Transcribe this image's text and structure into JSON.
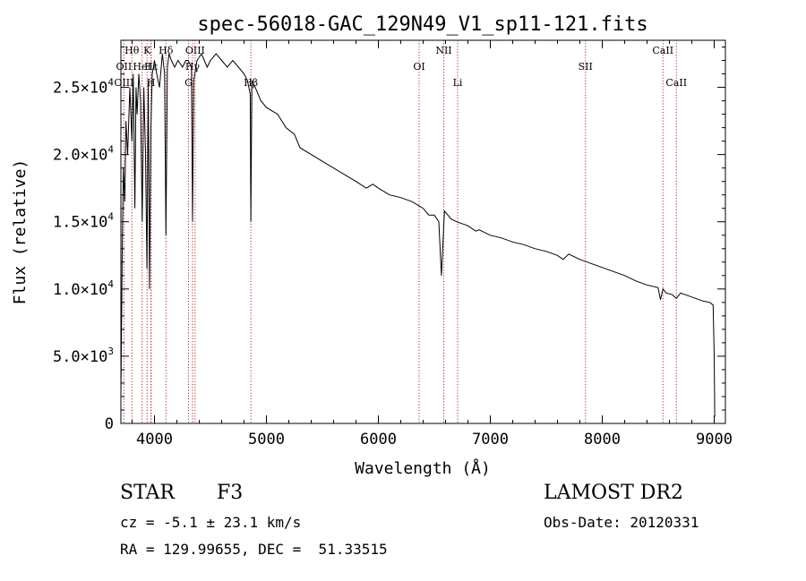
{
  "chart_data": {
    "type": "line",
    "title": "spec-56018-GAC_129N49_V1_sp11-121.fits",
    "xlabel": "Wavelength (Å)",
    "ylabel": "Flux (relative)",
    "xlim": [
      3700,
      9100
    ],
    "ylim": [
      0,
      28500
    ],
    "grid": false,
    "legend": "none",
    "x_ticks": [
      4000,
      5000,
      6000,
      7000,
      8000,
      9000
    ],
    "x_tick_labels": [
      "4000",
      "5000",
      "6000",
      "7000",
      "8000",
      "9000"
    ],
    "y_ticks": [
      0,
      5000,
      10000,
      15000,
      20000,
      25000
    ],
    "y_tick_labels": [
      {
        "mant": "0",
        "exp": ""
      },
      {
        "mant": "5.0×10",
        "exp": "3"
      },
      {
        "mant": "1.0×10",
        "exp": "4"
      },
      {
        "mant": "1.5×10",
        "exp": "4"
      },
      {
        "mant": "2.0×10",
        "exp": "4"
      },
      {
        "mant": "2.5×10",
        "exp": "4"
      }
    ],
    "series": [
      {
        "x": [
          3700,
          3712,
          3722,
          3735,
          3745,
          3760,
          3780,
          3798,
          3810,
          3825,
          3835,
          3845,
          3860,
          3875,
          3890,
          3905,
          3920,
          3933,
          3945,
          3955,
          3968,
          3980,
          3990,
          4000,
          4020,
          4045,
          4070,
          4090,
          4102,
          4115,
          4130,
          4150,
          4180,
          4210,
          4250,
          4280,
          4300,
          4330,
          4340,
          4350,
          4380,
          4420,
          4470,
          4500,
          4550,
          4600,
          4650,
          4700,
          4750,
          4800,
          4830,
          4855,
          4861,
          4870,
          4900,
          4950,
          5000,
          5100,
          5175,
          5250,
          5300,
          5400,
          5500,
          5600,
          5700,
          5800,
          5893,
          5950,
          6000,
          6100,
          6200,
          6300,
          6400,
          6450,
          6500,
          6540,
          6563,
          6590,
          6650,
          6700,
          6800,
          6870,
          6900,
          7000,
          7100,
          7200,
          7300,
          7400,
          7500,
          7600,
          7650,
          7700,
          7800,
          7900,
          8000,
          8100,
          8200,
          8300,
          8400,
          8498,
          8520,
          8542,
          8570,
          8620,
          8662,
          8700,
          8800,
          8900,
          8960,
          8990,
          9000,
          9005
        ],
        "y": [
          2000,
          13000,
          19000,
          16500,
          22500,
          20000,
          25000,
          21000,
          26000,
          16000,
          25000,
          23000,
          26000,
          24000,
          15000,
          25000,
          20000,
          11500,
          25500,
          10000,
          22000,
          26000,
          26500,
          27000,
          26000,
          25000,
          27500,
          26000,
          14000,
          26500,
          27500,
          27000,
          26500,
          27000,
          26500,
          27000,
          27000,
          26500,
          15000,
          25500,
          27000,
          27500,
          26500,
          27000,
          27500,
          27000,
          26500,
          27000,
          26500,
          26000,
          25500,
          24500,
          15000,
          25500,
          25000,
          24000,
          23500,
          23000,
          22000,
          21500,
          20500,
          20000,
          19500,
          19000,
          18500,
          18000,
          17500,
          17800,
          17500,
          17000,
          16800,
          16500,
          16000,
          15500,
          15500,
          15000,
          11000,
          15800,
          15200,
          15000,
          14700,
          14300,
          14400,
          14000,
          13800,
          13500,
          13300,
          13000,
          12800,
          12500,
          12200,
          12600,
          12200,
          11900,
          11600,
          11300,
          11000,
          10600,
          10300,
          10100,
          9200,
          10000,
          9700,
          9600,
          9300,
          9700,
          9400,
          9100,
          9000,
          8800,
          5000,
          500
        ]
      }
    ],
    "lines": [
      {
        "label": "Hθ",
        "x": 3798,
        "row": 1
      },
      {
        "label": "OII",
        "x": 3727,
        "row": 2
      },
      {
        "label": "OIII",
        "x": 3727,
        "row": 3
      },
      {
        "label": "K",
        "x": 3934,
        "row": 1
      },
      {
        "label": "HeI",
        "x": 3889,
        "row": 2
      },
      {
        "label": "H",
        "x": 3969,
        "row": 3
      },
      {
        "label": "Hδ",
        "x": 4102,
        "row": 1
      },
      {
        "label": "Hε",
        "x": 3970,
        "row": 2
      },
      {
        "label": "G",
        "x": 4304,
        "row": 3
      },
      {
        "label": "OIII",
        "x": 4363,
        "row": 1
      },
      {
        "label": "Hγ",
        "x": 4340,
        "row": 2
      },
      {
        "label": "Hβ",
        "x": 4861,
        "row": 3
      },
      {
        "label": "NII",
        "x": 6584,
        "row": 1
      },
      {
        "label": "OI",
        "x": 6364,
        "row": 2
      },
      {
        "label": "Li",
        "x": 6708,
        "row": 3
      },
      {
        "label": "SII",
        "x": 7850,
        "row": 2
      },
      {
        "label": "CaII",
        "x": 8542,
        "row": 1
      },
      {
        "label": "CaII",
        "x": 8662,
        "row": 3
      }
    ]
  },
  "info": {
    "class": "STAR",
    "subclass": "F3",
    "cz": "cz = -5.1 ± 23.1 km/s",
    "radec": "RA = 129.99655, DEC =  51.33515",
    "survey": "LAMOST DR2",
    "obs_date": "Obs-Date: 20120331"
  }
}
